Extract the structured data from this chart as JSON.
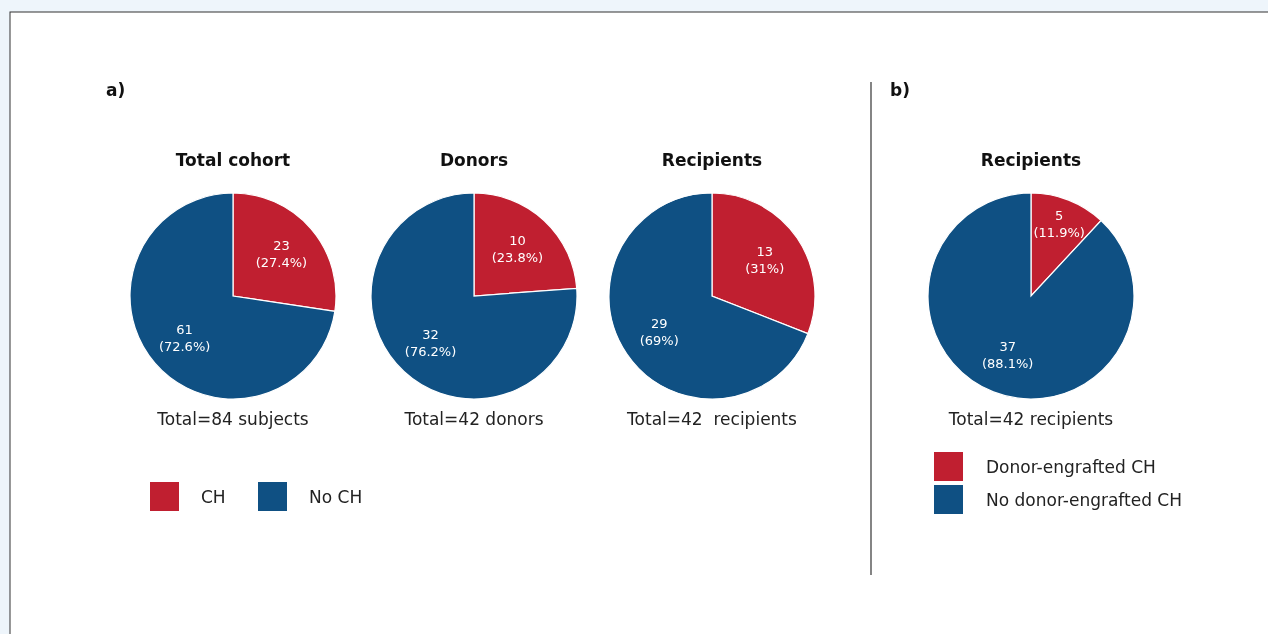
{
  "chart_data": [
    {
      "type": "pie",
      "title": "Total cohort",
      "categories": [
        "CH",
        "No CH"
      ],
      "values": [
        23,
        61
      ],
      "colors": [
        "#c01f30",
        "#0f5083"
      ],
      "value_labels": [
        "23\n(27.4%)",
        "61\n(72.6%)"
      ],
      "annotations": [
        "a)",
        "Total=84 subjects"
      ],
      "legend": "bottom"
    },
    {
      "type": "pie",
      "title": "Donors",
      "categories": [
        null,
        null
      ],
      "values": [
        10,
        32
      ],
      "colors": [
        "#c01f30",
        "#0f5083"
      ],
      "value_labels": [
        "10\n(23.8%)",
        "32\n(76.2%)"
      ],
      "annotations": [
        "Total=42 donors"
      ]
    },
    {
      "type": "pie",
      "title": "Recipients",
      "categories": [
        null,
        null
      ],
      "values": [
        13,
        29
      ],
      "colors": [
        "#c01f30",
        "#0f5083"
      ],
      "value_labels": [
        "13\n(31%)",
        "29\n(69%)"
      ],
      "annotations": [
        "Total=42  recipients"
      ]
    },
    {
      "type": "pie",
      "title": "Recipients",
      "categories": [
        "Donor-engrafted CH",
        "No donor-engrafted CH"
      ],
      "values": [
        5,
        37
      ],
      "colors": [
        "#c01f30",
        "#0f5083"
      ],
      "value_labels": [
        "5\n(11.9%)",
        "37\n(88.1%)"
      ],
      "annotations": [
        "b)",
        "Total=42 recipients"
      ],
      "legend": "bottom"
    }
  ]
}
